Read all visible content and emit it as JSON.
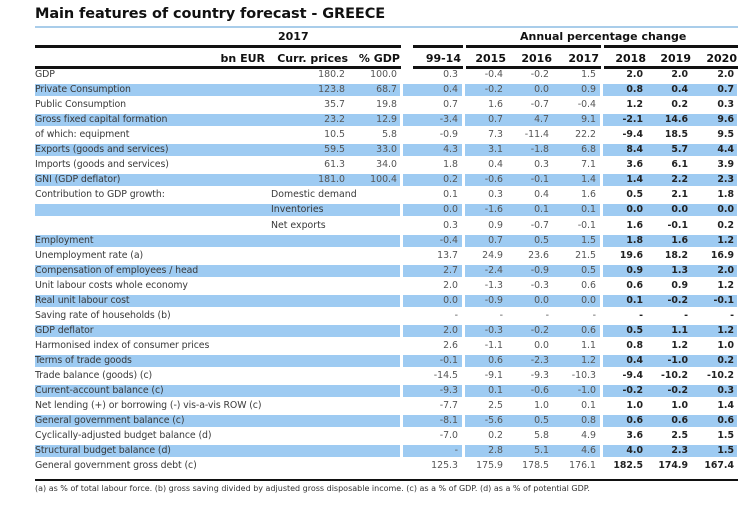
{
  "title": "Main features of country forecast - GREECE",
  "header": {
    "year_group": "2017",
    "change_group": "Annual percentage change",
    "unit": "bn EUR",
    "columns": [
      "Curr. prices",
      "% GDP",
      "99-14",
      "2015",
      "2016",
      "2017",
      "2018",
      "2019",
      "2020"
    ]
  },
  "highlight_color": "#9ecbf2",
  "rows": [
    {
      "label": "GDP",
      "sub": "",
      "hl": false,
      "v": [
        "180.2",
        "100.0",
        "0.3",
        "-0.4",
        "-0.2",
        "1.5",
        "2.0",
        "2.0",
        "2.0"
      ]
    },
    {
      "label": "Private Consumption",
      "sub": "",
      "hl": true,
      "v": [
        "123.8",
        "68.7",
        "0.4",
        "-0.2",
        "0.0",
        "0.9",
        "0.8",
        "0.4",
        "0.7"
      ]
    },
    {
      "label": "Public Consumption",
      "sub": "",
      "hl": false,
      "v": [
        "35.7",
        "19.8",
        "0.7",
        "1.6",
        "-0.7",
        "-0.4",
        "1.2",
        "0.2",
        "0.3"
      ]
    },
    {
      "label": "Gross fixed capital formation",
      "sub": "",
      "hl": true,
      "v": [
        "23.2",
        "12.9",
        "-3.4",
        "0.7",
        "4.7",
        "9.1",
        "-2.1",
        "14.6",
        "9.6"
      ]
    },
    {
      "label": "of which: equipment",
      "sub": "",
      "hl": false,
      "v": [
        "10.5",
        "5.8",
        "-0.9",
        "7.3",
        "-11.4",
        "22.2",
        "-9.4",
        "18.5",
        "9.5"
      ]
    },
    {
      "label": "Exports (goods and services)",
      "sub": "",
      "hl": true,
      "v": [
        "59.5",
        "33.0",
        "4.3",
        "3.1",
        "-1.8",
        "6.8",
        "8.4",
        "5.7",
        "4.4"
      ]
    },
    {
      "label": "Imports (goods and services)",
      "sub": "",
      "hl": false,
      "v": [
        "61.3",
        "34.0",
        "1.8",
        "0.4",
        "0.3",
        "7.1",
        "3.6",
        "6.1",
        "3.9"
      ]
    },
    {
      "label": "GNI (GDP deflator)",
      "sub": "",
      "hl": true,
      "v": [
        "181.0",
        "100.4",
        "0.2",
        "-0.6",
        "-0.1",
        "1.4",
        "1.4",
        "2.2",
        "2.3"
      ]
    },
    {
      "label": "Contribution to GDP growth:",
      "sub": "Domestic demand",
      "hl": false,
      "v": [
        "",
        "",
        "0.1",
        "0.3",
        "0.4",
        "1.6",
        "0.5",
        "2.1",
        "1.8"
      ]
    },
    {
      "label": "",
      "sub": "Inventories",
      "hl": true,
      "v": [
        "",
        "",
        "0.0",
        "-1.6",
        "0.1",
        "0.1",
        "0.0",
        "0.0",
        "0.0"
      ]
    },
    {
      "label": "",
      "sub": "Net exports",
      "hl": false,
      "v": [
        "",
        "",
        "0.3",
        "0.9",
        "-0.7",
        "-0.1",
        "1.6",
        "-0.1",
        "0.2"
      ]
    },
    {
      "label": "Employment",
      "sub": "",
      "hl": true,
      "v": [
        "",
        "",
        "-0.4",
        "0.7",
        "0.5",
        "1.5",
        "1.8",
        "1.6",
        "1.2"
      ]
    },
    {
      "label": "Unemployment rate (a)",
      "sub": "",
      "hl": false,
      "v": [
        "",
        "",
        "13.7",
        "24.9",
        "23.6",
        "21.5",
        "19.6",
        "18.2",
        "16.9"
      ]
    },
    {
      "label": "Compensation of employees / head",
      "sub": "",
      "hl": true,
      "v": [
        "",
        "",
        "2.7",
        "-2.4",
        "-0.9",
        "0.5",
        "0.9",
        "1.3",
        "2.0"
      ]
    },
    {
      "label": "Unit labour costs whole economy",
      "sub": "",
      "hl": false,
      "v": [
        "",
        "",
        "2.0",
        "-1.3",
        "-0.3",
        "0.6",
        "0.6",
        "0.9",
        "1.2"
      ]
    },
    {
      "label": "Real unit labour cost",
      "sub": "",
      "hl": true,
      "v": [
        "",
        "",
        "0.0",
        "-0.9",
        "0.0",
        "0.0",
        "0.1",
        "-0.2",
        "-0.1"
      ]
    },
    {
      "label": "Saving rate of households (b)",
      "sub": "",
      "hl": false,
      "v": [
        "",
        "",
        "-",
        "-",
        "-",
        "-",
        "-",
        "-",
        "-"
      ]
    },
    {
      "label": "GDP deflator",
      "sub": "",
      "hl": true,
      "v": [
        "",
        "",
        "2.0",
        "-0.3",
        "-0.2",
        "0.6",
        "0.5",
        "1.1",
        "1.2"
      ]
    },
    {
      "label": "Harmonised index of consumer prices",
      "sub": "",
      "hl": false,
      "v": [
        "",
        "",
        "2.6",
        "-1.1",
        "0.0",
        "1.1",
        "0.8",
        "1.2",
        "1.0"
      ]
    },
    {
      "label": "Terms of trade goods",
      "sub": "",
      "hl": true,
      "v": [
        "",
        "",
        "-0.1",
        "0.6",
        "-2.3",
        "1.2",
        "0.4",
        "-1.0",
        "0.2"
      ]
    },
    {
      "label": "Trade balance (goods) (c)",
      "sub": "",
      "hl": false,
      "v": [
        "",
        "",
        "-14.5",
        "-9.1",
        "-9.3",
        "-10.3",
        "-9.4",
        "-10.2",
        "-10.2"
      ]
    },
    {
      "label": "Current-account balance (c)",
      "sub": "",
      "hl": true,
      "v": [
        "",
        "",
        "-9.3",
        "0.1",
        "-0.6",
        "-1.0",
        "-0.2",
        "-0.2",
        "0.3"
      ]
    },
    {
      "label": "Net lending (+) or borrowing (-) vis-a-vis ROW (c)",
      "sub": "",
      "hl": false,
      "v": [
        "",
        "",
        "-7.7",
        "2.5",
        "1.0",
        "0.1",
        "1.0",
        "1.0",
        "1.4"
      ]
    },
    {
      "label": "General government balance (c)",
      "sub": "",
      "hl": true,
      "v": [
        "",
        "",
        "-8.1",
        "-5.6",
        "0.5",
        "0.8",
        "0.6",
        "0.6",
        "0.6"
      ]
    },
    {
      "label": "Cyclically-adjusted budget balance (d)",
      "sub": "",
      "hl": false,
      "v": [
        "",
        "",
        "-7.0",
        "0.2",
        "5.8",
        "4.9",
        "3.6",
        "2.5",
        "1.5"
      ]
    },
    {
      "label": "Structural budget balance (d)",
      "sub": "",
      "hl": true,
      "v": [
        "",
        "",
        "-",
        "2.8",
        "5.1",
        "4.6",
        "4.0",
        "2.3",
        "1.5"
      ]
    },
    {
      "label": "General government gross debt (c)",
      "sub": "",
      "hl": false,
      "v": [
        "",
        "",
        "125.3",
        "175.9",
        "178.5",
        "176.1",
        "182.5",
        "174.9",
        "167.4"
      ]
    }
  ],
  "footnote": "(a) as % of total labour force. (b) gross saving divided by adjusted gross disposable income. (c) as a % of  GDP. (d) as a % of  potential GDP."
}
